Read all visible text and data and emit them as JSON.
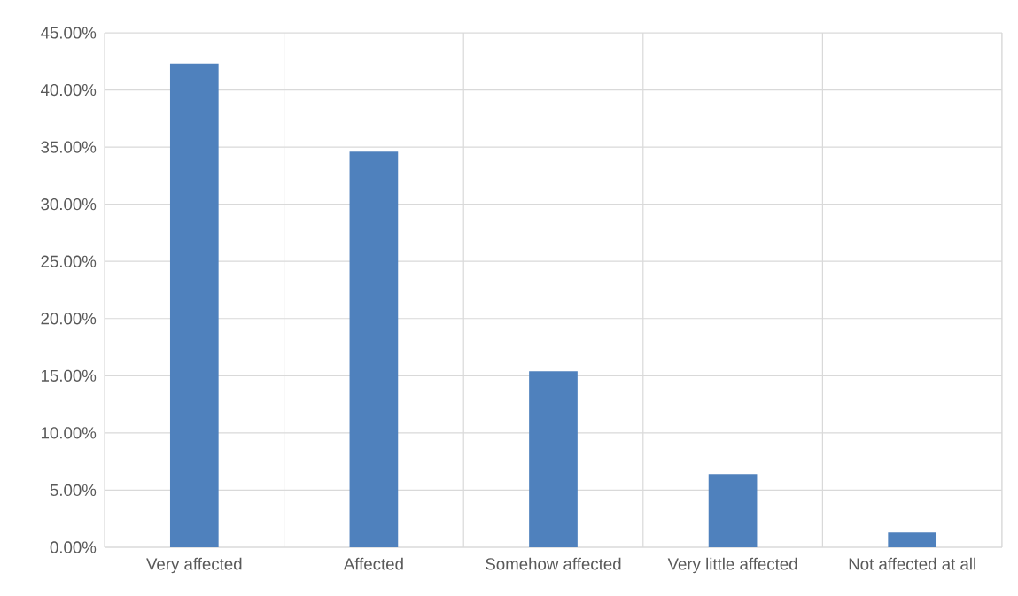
{
  "chart_data": {
    "type": "bar",
    "categories": [
      "Very affected",
      "Affected",
      "Somehow affected",
      "Very little affected",
      "Not affected at all"
    ],
    "values": [
      42.3,
      34.6,
      15.4,
      6.4,
      1.3
    ],
    "color": "#4f81bd",
    "ylim": [
      0,
      45
    ],
    "yticks": [
      {
        "value": 0,
        "label": "0.00%"
      },
      {
        "value": 5,
        "label": "5.00%"
      },
      {
        "value": 10,
        "label": "10.00%"
      },
      {
        "value": 15,
        "label": "15.00%"
      },
      {
        "value": 20,
        "label": "20.00%"
      },
      {
        "value": 25,
        "label": "25.00%"
      },
      {
        "value": 30,
        "label": "30.00%"
      },
      {
        "value": 35,
        "label": "35.00%"
      },
      {
        "value": 40,
        "label": "40.00%"
      },
      {
        "value": 45,
        "label": "45.00%"
      }
    ],
    "grid": true
  }
}
